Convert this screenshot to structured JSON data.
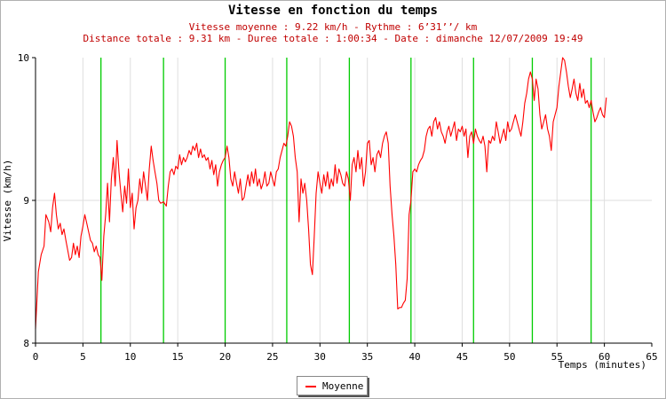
{
  "chart_data": {
    "type": "line",
    "title": "Vitesse en fonction du temps",
    "subtitle_lines": [
      "Vitesse moyenne : 9.22 km/h - Rythme : 6’31’’/ km",
      "Distance totale : 9.31 km - Duree totale : 1:00:34 - Date : dimanche 12/07/2009 19:49"
    ],
    "xlabel": "Temps (minutes)",
    "ylabel": "Vitesse (km/h)",
    "xlim": [
      0,
      65
    ],
    "ylim": [
      8,
      10
    ],
    "x_ticks": [
      "0",
      "5",
      "10",
      "15",
      "20",
      "25",
      "30",
      "35",
      "40",
      "45",
      "50",
      "55",
      "60",
      "65"
    ],
    "y_ticks": [
      "8",
      "9",
      "10"
    ],
    "grid": true,
    "legend_position": "bottom-center",
    "series": [
      {
        "name": "Moyenne",
        "color": "#ff0000",
        "points": [
          [
            0,
            8.1
          ],
          [
            0.3,
            8.5
          ],
          [
            0.6,
            8.62
          ],
          [
            0.9,
            8.68
          ],
          [
            1.1,
            8.9
          ],
          [
            1.4,
            8.85
          ],
          [
            1.6,
            8.78
          ],
          [
            1.8,
            8.95
          ],
          [
            2.0,
            9.05
          ],
          [
            2.2,
            8.9
          ],
          [
            2.4,
            8.8
          ],
          [
            2.6,
            8.84
          ],
          [
            2.8,
            8.76
          ],
          [
            3.0,
            8.8
          ],
          [
            3.2,
            8.72
          ],
          [
            3.4,
            8.65
          ],
          [
            3.6,
            8.58
          ],
          [
            3.8,
            8.6
          ],
          [
            4.0,
            8.7
          ],
          [
            4.2,
            8.62
          ],
          [
            4.4,
            8.68
          ],
          [
            4.6,
            8.6
          ],
          [
            4.8,
            8.75
          ],
          [
            5.0,
            8.82
          ],
          [
            5.2,
            8.9
          ],
          [
            5.4,
            8.84
          ],
          [
            5.6,
            8.78
          ],
          [
            5.8,
            8.72
          ],
          [
            6.0,
            8.7
          ],
          [
            6.2,
            8.64
          ],
          [
            6.4,
            8.68
          ],
          [
            6.6,
            8.62
          ],
          [
            6.8,
            8.6
          ],
          [
            7.0,
            8.44
          ],
          [
            7.2,
            8.75
          ],
          [
            7.4,
            8.9
          ],
          [
            7.6,
            9.12
          ],
          [
            7.8,
            8.85
          ],
          [
            8.0,
            9.15
          ],
          [
            8.2,
            9.3
          ],
          [
            8.4,
            9.1
          ],
          [
            8.6,
            9.42
          ],
          [
            8.8,
            9.2
          ],
          [
            9.0,
            9.05
          ],
          [
            9.2,
            8.92
          ],
          [
            9.4,
            9.1
          ],
          [
            9.6,
            8.98
          ],
          [
            9.8,
            9.22
          ],
          [
            10.0,
            8.95
          ],
          [
            10.2,
            9.05
          ],
          [
            10.4,
            8.8
          ],
          [
            10.6,
            8.95
          ],
          [
            10.8,
            9.0
          ],
          [
            11.0,
            9.15
          ],
          [
            11.2,
            9.05
          ],
          [
            11.4,
            9.2
          ],
          [
            11.6,
            9.1
          ],
          [
            11.8,
            9.0
          ],
          [
            12.0,
            9.22
          ],
          [
            12.2,
            9.38
          ],
          [
            12.4,
            9.28
          ],
          [
            12.6,
            9.2
          ],
          [
            12.8,
            9.12
          ],
          [
            13.0,
            9.0
          ],
          [
            13.2,
            8.98
          ],
          [
            13.5,
            8.99
          ],
          [
            13.8,
            8.96
          ],
          [
            14.0,
            9.1
          ],
          [
            14.2,
            9.2
          ],
          [
            14.4,
            9.22
          ],
          [
            14.6,
            9.18
          ],
          [
            14.8,
            9.24
          ],
          [
            15.0,
            9.22
          ],
          [
            15.2,
            9.32
          ],
          [
            15.4,
            9.25
          ],
          [
            15.6,
            9.3
          ],
          [
            15.8,
            9.27
          ],
          [
            16.0,
            9.3
          ],
          [
            16.2,
            9.35
          ],
          [
            16.4,
            9.32
          ],
          [
            16.6,
            9.38
          ],
          [
            16.8,
            9.35
          ],
          [
            17.0,
            9.4
          ],
          [
            17.2,
            9.3
          ],
          [
            17.4,
            9.36
          ],
          [
            17.6,
            9.3
          ],
          [
            17.8,
            9.32
          ],
          [
            18.0,
            9.28
          ],
          [
            18.2,
            9.3
          ],
          [
            18.4,
            9.22
          ],
          [
            18.6,
            9.28
          ],
          [
            18.8,
            9.18
          ],
          [
            19.0,
            9.25
          ],
          [
            19.2,
            9.1
          ],
          [
            19.4,
            9.2
          ],
          [
            19.6,
            9.25
          ],
          [
            19.8,
            9.28
          ],
          [
            20.0,
            9.3
          ],
          [
            20.2,
            9.38
          ],
          [
            20.4,
            9.3
          ],
          [
            20.6,
            9.15
          ],
          [
            20.8,
            9.1
          ],
          [
            21.0,
            9.2
          ],
          [
            21.2,
            9.12
          ],
          [
            21.4,
            9.05
          ],
          [
            21.6,
            9.15
          ],
          [
            21.8,
            9.0
          ],
          [
            22.0,
            9.02
          ],
          [
            22.2,
            9.1
          ],
          [
            22.4,
            9.18
          ],
          [
            22.6,
            9.1
          ],
          [
            22.8,
            9.2
          ],
          [
            23.0,
            9.12
          ],
          [
            23.2,
            9.22
          ],
          [
            23.4,
            9.1
          ],
          [
            23.6,
            9.15
          ],
          [
            23.8,
            9.08
          ],
          [
            24.0,
            9.12
          ],
          [
            24.2,
            9.2
          ],
          [
            24.4,
            9.1
          ],
          [
            24.6,
            9.12
          ],
          [
            24.8,
            9.2
          ],
          [
            25.0,
            9.15
          ],
          [
            25.2,
            9.1
          ],
          [
            25.4,
            9.2
          ],
          [
            25.6,
            9.22
          ],
          [
            25.8,
            9.3
          ],
          [
            26.0,
            9.35
          ],
          [
            26.2,
            9.4
          ],
          [
            26.4,
            9.38
          ],
          [
            26.6,
            9.45
          ],
          [
            26.8,
            9.55
          ],
          [
            27.0,
            9.52
          ],
          [
            27.2,
            9.45
          ],
          [
            27.4,
            9.3
          ],
          [
            27.6,
            9.2
          ],
          [
            27.8,
            8.85
          ],
          [
            28.0,
            9.15
          ],
          [
            28.2,
            9.05
          ],
          [
            28.4,
            9.12
          ],
          [
            28.6,
            9.0
          ],
          [
            28.8,
            8.8
          ],
          [
            29.0,
            8.55
          ],
          [
            29.2,
            8.48
          ],
          [
            29.4,
            8.75
          ],
          [
            29.6,
            9.05
          ],
          [
            29.8,
            9.2
          ],
          [
            30.0,
            9.12
          ],
          [
            30.2,
            9.05
          ],
          [
            30.4,
            9.18
          ],
          [
            30.6,
            9.1
          ],
          [
            30.8,
            9.2
          ],
          [
            31.0,
            9.08
          ],
          [
            31.2,
            9.15
          ],
          [
            31.4,
            9.1
          ],
          [
            31.6,
            9.25
          ],
          [
            31.8,
            9.12
          ],
          [
            32.0,
            9.22
          ],
          [
            32.2,
            9.18
          ],
          [
            32.4,
            9.12
          ],
          [
            32.6,
            9.1
          ],
          [
            32.8,
            9.2
          ],
          [
            33.0,
            9.15
          ],
          [
            33.2,
            9.0
          ],
          [
            33.4,
            9.25
          ],
          [
            33.6,
            9.3
          ],
          [
            33.8,
            9.2
          ],
          [
            34.0,
            9.35
          ],
          [
            34.2,
            9.22
          ],
          [
            34.4,
            9.3
          ],
          [
            34.6,
            9.1
          ],
          [
            34.8,
            9.2
          ],
          [
            35.0,
            9.4
          ],
          [
            35.2,
            9.42
          ],
          [
            35.4,
            9.25
          ],
          [
            35.6,
            9.3
          ],
          [
            35.8,
            9.2
          ],
          [
            36.0,
            9.32
          ],
          [
            36.2,
            9.35
          ],
          [
            36.4,
            9.3
          ],
          [
            36.6,
            9.4
          ],
          [
            36.8,
            9.45
          ],
          [
            37.0,
            9.48
          ],
          [
            37.2,
            9.4
          ],
          [
            37.4,
            9.1
          ],
          [
            37.6,
            8.9
          ],
          [
            37.8,
            8.75
          ],
          [
            38.0,
            8.55
          ],
          [
            38.2,
            8.24
          ],
          [
            38.4,
            8.25
          ],
          [
            38.6,
            8.25
          ],
          [
            38.8,
            8.28
          ],
          [
            39.0,
            8.3
          ],
          [
            39.2,
            8.45
          ],
          [
            39.4,
            8.9
          ],
          [
            39.6,
            9.0
          ],
          [
            39.8,
            9.2
          ],
          [
            40.0,
            9.22
          ],
          [
            40.2,
            9.2
          ],
          [
            40.4,
            9.25
          ],
          [
            40.6,
            9.28
          ],
          [
            40.8,
            9.3
          ],
          [
            41.0,
            9.35
          ],
          [
            41.2,
            9.45
          ],
          [
            41.4,
            9.5
          ],
          [
            41.6,
            9.52
          ],
          [
            41.8,
            9.45
          ],
          [
            42.0,
            9.55
          ],
          [
            42.2,
            9.58
          ],
          [
            42.4,
            9.5
          ],
          [
            42.6,
            9.55
          ],
          [
            42.8,
            9.48
          ],
          [
            43.0,
            9.45
          ],
          [
            43.2,
            9.4
          ],
          [
            43.4,
            9.48
          ],
          [
            43.6,
            9.52
          ],
          [
            43.8,
            9.45
          ],
          [
            44.0,
            9.5
          ],
          [
            44.2,
            9.55
          ],
          [
            44.4,
            9.42
          ],
          [
            44.6,
            9.5
          ],
          [
            44.8,
            9.48
          ],
          [
            45.0,
            9.52
          ],
          [
            45.2,
            9.45
          ],
          [
            45.4,
            9.5
          ],
          [
            45.6,
            9.3
          ],
          [
            45.8,
            9.45
          ],
          [
            46.0,
            9.48
          ],
          [
            46.2,
            9.4
          ],
          [
            46.4,
            9.5
          ],
          [
            46.6,
            9.45
          ],
          [
            46.8,
            9.42
          ],
          [
            47.0,
            9.4
          ],
          [
            47.2,
            9.45
          ],
          [
            47.4,
            9.38
          ],
          [
            47.6,
            9.2
          ],
          [
            47.8,
            9.42
          ],
          [
            48.0,
            9.4
          ],
          [
            48.2,
            9.45
          ],
          [
            48.4,
            9.42
          ],
          [
            48.6,
            9.55
          ],
          [
            48.8,
            9.48
          ],
          [
            49.0,
            9.4
          ],
          [
            49.2,
            9.45
          ],
          [
            49.4,
            9.5
          ],
          [
            49.6,
            9.42
          ],
          [
            49.8,
            9.55
          ],
          [
            50.0,
            9.48
          ],
          [
            50.2,
            9.5
          ],
          [
            50.4,
            9.55
          ],
          [
            50.6,
            9.6
          ],
          [
            50.8,
            9.55
          ],
          [
            51.0,
            9.5
          ],
          [
            51.2,
            9.45
          ],
          [
            51.4,
            9.55
          ],
          [
            51.6,
            9.68
          ],
          [
            51.8,
            9.75
          ],
          [
            52.0,
            9.85
          ],
          [
            52.2,
            9.9
          ],
          [
            52.4,
            9.85
          ],
          [
            52.6,
            9.7
          ],
          [
            52.8,
            9.85
          ],
          [
            53.0,
            9.78
          ],
          [
            53.2,
            9.6
          ],
          [
            53.4,
            9.5
          ],
          [
            53.6,
            9.55
          ],
          [
            53.8,
            9.6
          ],
          [
            54.0,
            9.5
          ],
          [
            54.2,
            9.45
          ],
          [
            54.4,
            9.35
          ],
          [
            54.6,
            9.55
          ],
          [
            54.8,
            9.6
          ],
          [
            55.0,
            9.65
          ],
          [
            55.2,
            9.8
          ],
          [
            55.4,
            9.9
          ],
          [
            55.6,
            10.0
          ],
          [
            55.8,
            9.98
          ],
          [
            56.0,
            9.9
          ],
          [
            56.2,
            9.8
          ],
          [
            56.4,
            9.72
          ],
          [
            56.6,
            9.78
          ],
          [
            56.8,
            9.85
          ],
          [
            57.0,
            9.75
          ],
          [
            57.2,
            9.7
          ],
          [
            57.4,
            9.82
          ],
          [
            57.6,
            9.72
          ],
          [
            57.8,
            9.78
          ],
          [
            58.0,
            9.68
          ],
          [
            58.2,
            9.7
          ],
          [
            58.4,
            9.65
          ],
          [
            58.6,
            9.7
          ],
          [
            58.8,
            9.62
          ],
          [
            59.0,
            9.55
          ],
          [
            59.2,
            9.58
          ],
          [
            59.4,
            9.62
          ],
          [
            59.6,
            9.65
          ],
          [
            59.8,
            9.6
          ],
          [
            60.0,
            9.58
          ],
          [
            60.2,
            9.72
          ]
        ]
      }
    ],
    "markers": {
      "color": "#00cc00",
      "x": [
        6.9,
        13.5,
        20.0,
        26.5,
        33.1,
        39.6,
        46.2,
        52.4,
        58.6
      ]
    }
  }
}
